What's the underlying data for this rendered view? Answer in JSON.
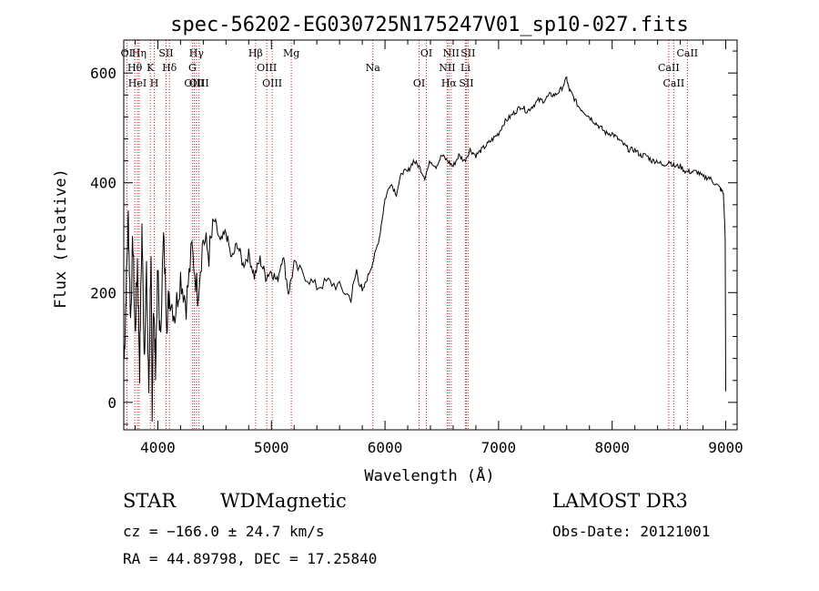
{
  "chart_data": {
    "type": "line",
    "title": "spec-56202-EG030725N175247V01_sp10-027.fits",
    "xlabel": "Wavelength (Å)",
    "ylabel": "Flux (relative)",
    "xlim": [
      3700,
      9100
    ],
    "ylim": [
      -50,
      660
    ],
    "xticks": [
      4000,
      5000,
      6000,
      7000,
      8000,
      9000
    ],
    "yticks": [
      0,
      200,
      400,
      600
    ],
    "grid": false,
    "line_color": "#000000",
    "marker_color": "#cc2222",
    "series": [
      {
        "x": [
          3705,
          3720,
          3740,
          3760,
          3780,
          3800,
          3820,
          3840,
          3860,
          3880,
          3900,
          3920,
          3940,
          3950,
          3960,
          3980,
          4000,
          4020,
          4050,
          4080,
          4100,
          4150,
          4200,
          4250,
          4300,
          4350,
          4400,
          4450,
          4500,
          4550,
          4600,
          4650,
          4700,
          4750,
          4800,
          4850,
          4900,
          4950,
          5000,
          5050,
          5100,
          5150,
          5200,
          5300,
          5400,
          5500,
          5600,
          5700,
          5750,
          5800,
          5850,
          5900,
          5950,
          6000,
          6050,
          6100,
          6150,
          6200,
          6250,
          6300,
          6350,
          6400,
          6450,
          6500,
          6550,
          6600,
          6650,
          6700,
          6750,
          6800,
          6850,
          6900,
          6950,
          7000,
          7050,
          7100,
          7150,
          7200,
          7250,
          7300,
          7350,
          7400,
          7450,
          7500,
          7550,
          7600,
          7620,
          7650,
          7700,
          7750,
          7800,
          7850,
          7900,
          7950,
          8000,
          8050,
          8100,
          8150,
          8200,
          8250,
          8300,
          8350,
          8400,
          8450,
          8500,
          8550,
          8600,
          8650,
          8700,
          8750,
          8800,
          8850,
          8900,
          8950,
          8980,
          8995,
          9000
        ],
        "y": [
          80,
          200,
          340,
          150,
          300,
          120,
          260,
          60,
          320,
          90,
          230,
          20,
          280,
          -50,
          180,
          70,
          240,
          110,
          300,
          150,
          200,
          160,
          230,
          180,
          280,
          200,
          300,
          270,
          330,
          290,
          310,
          260,
          290,
          250,
          270,
          230,
          260,
          230,
          240,
          220,
          270,
          200,
          250,
          230,
          210,
          220,
          210,
          190,
          240,
          200,
          230,
          260,
          300,
          370,
          400,
          380,
          420,
          420,
          440,
          430,
          410,
          440,
          430,
          450,
          440,
          430,
          450,
          440,
          460,
          450,
          460,
          470,
          480,
          490,
          510,
          520,
          530,
          540,
          530,
          540,
          550,
          550,
          560,
          560,
          570,
          590,
          570,
          560,
          540,
          530,
          520,
          510,
          500,
          490,
          490,
          480,
          470,
          460,
          460,
          450,
          450,
          440,
          440,
          430,
          440,
          430,
          430,
          420,
          420,
          420,
          410,
          410,
          400,
          390,
          380,
          300,
          20
        ]
      }
    ],
    "lines": [
      {
        "label": "OI",
        "x": 3727
      },
      {
        "label": "Hθ",
        "x": 3797
      },
      {
        "label": "HeI",
        "x": 3820
      },
      {
        "label": "Hη",
        "x": 3835
      },
      {
        "label": "K",
        "x": 3934
      },
      {
        "label": "H",
        "x": 3969
      },
      {
        "label": "SII",
        "x": 4072
      },
      {
        "label": "Hδ",
        "x": 4102
      },
      {
        "label": "OIII",
        "x": 4320
      },
      {
        "label": "Hγ",
        "x": 4340
      },
      {
        "label": "G",
        "x": 4304
      },
      {
        "label": "OIII",
        "x": 4363
      },
      {
        "label": "Hβ",
        "x": 4861
      },
      {
        "label": "OIII",
        "x": 4959
      },
      {
        "label": "OIII",
        "x": 5007
      },
      {
        "label": "Mg",
        "x": 5175
      },
      {
        "label": "Na",
        "x": 5893
      },
      {
        "label": "OI",
        "x": 6300
      },
      {
        "label": "OI",
        "x": 6364
      },
      {
        "label": "NII",
        "x": 6548
      },
      {
        "label": "Hα",
        "x": 6563
      },
      {
        "label": "NII",
        "x": 6583
      },
      {
        "label": "Li",
        "x": 6708
      },
      {
        "label": "SII",
        "x": 6716
      },
      {
        "label": "SII",
        "x": 6731
      },
      {
        "label": "CaII",
        "x": 8498
      },
      {
        "label": "CaII",
        "x": 8542
      },
      {
        "label": "CaII",
        "x": 8662
      }
    ]
  },
  "info": {
    "class": "STAR",
    "subclass": "WDMagnetic",
    "survey": "LAMOST DR3",
    "cz": "cz = −166.0 ± 24.7 km/s",
    "obs_date": "Obs-Date: 20121001",
    "coords": "RA =  44.89798, DEC =  17.25840"
  }
}
